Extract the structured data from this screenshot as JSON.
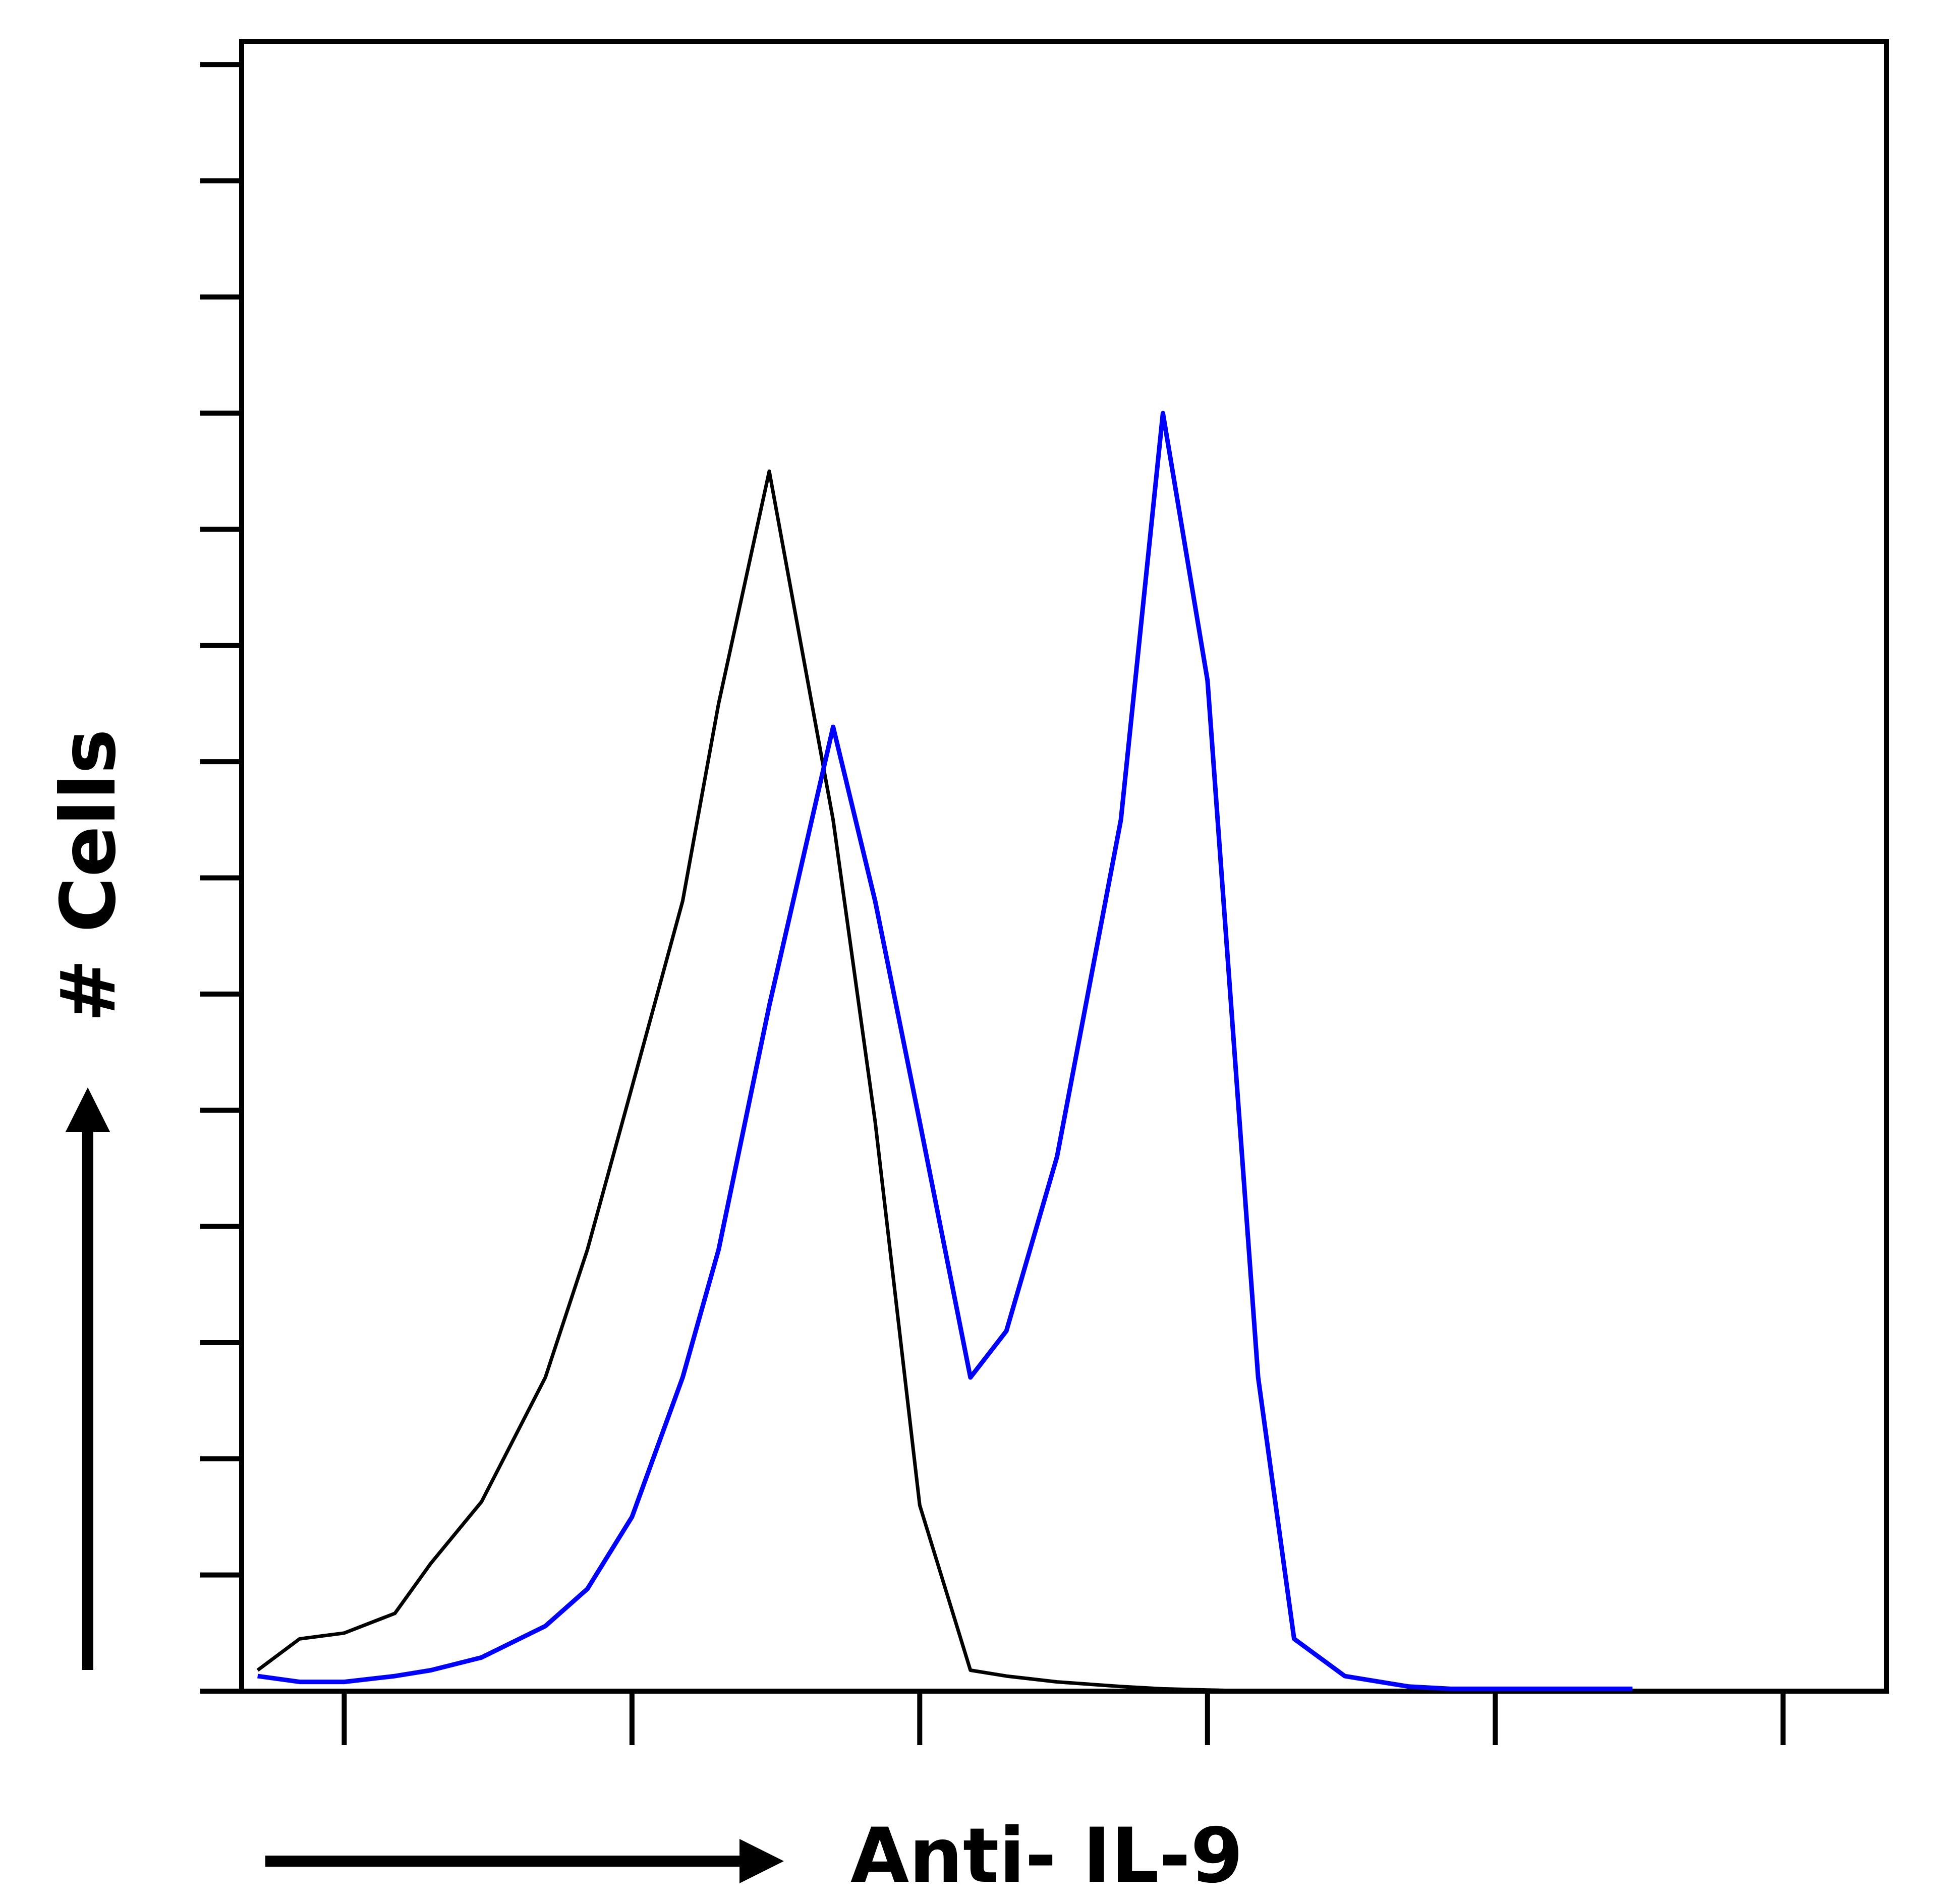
{
  "chart_data": {
    "type": "line",
    "ylabel": "# Cells",
    "xlabel": "Anti- IL-9",
    "xscale": "log",
    "x": [
      0.5,
      0.7,
      1,
      1.5,
      2,
      3,
      5,
      7,
      10,
      15,
      20,
      30,
      50,
      70,
      100,
      150,
      200,
      300,
      500,
      700,
      1000,
      1500,
      2000,
      3000,
      5000,
      7000,
      10000,
      15000,
      20000,
      30000
    ],
    "series": [
      {
        "color": "#000000",
        "values": [
          0.18,
          0.45,
          0.5,
          0.67,
          1.1,
          1.63,
          2.7,
          3.8,
          5.2,
          6.8,
          8.5,
          10.5,
          7.5,
          4.9,
          1.6,
          0.18,
          0.13,
          0.08,
          0.04,
          0.02,
          0.01,
          0,
          0,
          0,
          0,
          0,
          0,
          0,
          0,
          0
        ]
      },
      {
        "color": "#0000ff",
        "values": [
          0.13,
          0.08,
          0.08,
          0.13,
          0.18,
          0.29,
          0.56,
          0.88,
          1.5,
          2.7,
          3.8,
          5.9,
          8.3,
          6.8,
          4.9,
          2.7,
          3.1,
          4.6,
          7.5,
          11.0,
          8.7,
          2.7,
          0.45,
          0.13,
          0.04,
          0.02,
          0.02,
          0.02,
          0.02,
          0.02
        ]
      }
    ],
    "xlim": [
      0.44,
      229000
    ],
    "xticks": [
      1,
      10,
      100,
      1000,
      10000,
      100000
    ],
    "ylim": [
      0,
      14.2
    ],
    "yticks": [
      0,
      1,
      2,
      3,
      4,
      5,
      6,
      7,
      8,
      9,
      10,
      11,
      12,
      13,
      14
    ]
  }
}
